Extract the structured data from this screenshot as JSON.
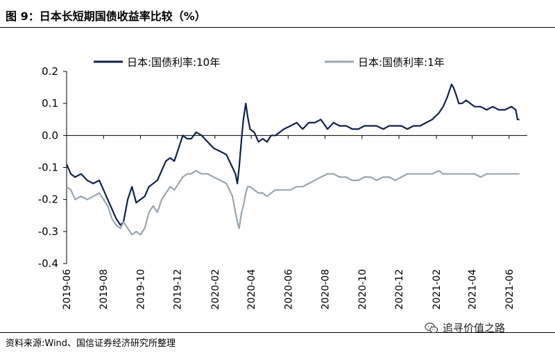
{
  "header": {
    "title": "图 9：日本长短期国债收益率比较（%）"
  },
  "footer": {
    "source": "资料来源:Wind、国信证券经济研究所整理"
  },
  "watermark": {
    "text": "追寻价值之路",
    "icon": "wechat-icon"
  },
  "chart_data": {
    "type": "line",
    "title": "",
    "xlabel": "",
    "ylabel": "",
    "ylim": [
      -0.4,
      0.2
    ],
    "yticks": [
      "0.2",
      "0.1",
      "0.0",
      "-0.1",
      "-0.2",
      "-0.3",
      "-0.4"
    ],
    "xlim": [
      "2019-06",
      "2021-07"
    ],
    "xticks": [
      "2019-06",
      "2019-08",
      "2019-10",
      "2019-12",
      "2020-02",
      "2020-04",
      "2020-06",
      "2020-08",
      "2020-10",
      "2020-12",
      "2021-02",
      "2021-04",
      "2021-06"
    ],
    "grid": false,
    "legend": "top",
    "series": [
      {
        "name": "日本:国债利率:10年",
        "color": "#0d2150",
        "x": [
          "2019-06-01",
          "2019-06-08",
          "2019-06-15",
          "2019-06-25",
          "2019-07-05",
          "2019-07-15",
          "2019-07-25",
          "2019-08-01",
          "2019-08-08",
          "2019-08-15",
          "2019-08-22",
          "2019-08-29",
          "2019-09-03",
          "2019-09-10",
          "2019-09-17",
          "2019-09-24",
          "2019-10-01",
          "2019-10-08",
          "2019-10-15",
          "2019-10-22",
          "2019-10-29",
          "2019-11-05",
          "2019-11-12",
          "2019-11-19",
          "2019-11-26",
          "2019-12-03",
          "2019-12-10",
          "2019-12-17",
          "2019-12-24",
          "2020-01-01",
          "2020-01-10",
          "2020-01-20",
          "2020-01-30",
          "2020-02-10",
          "2020-02-20",
          "2020-03-01",
          "2020-03-06",
          "2020-03-09",
          "2020-03-12",
          "2020-03-16",
          "2020-03-19",
          "2020-03-23",
          "2020-03-26",
          "2020-03-30",
          "2020-04-06",
          "2020-04-13",
          "2020-04-20",
          "2020-04-27",
          "2020-05-04",
          "2020-05-11",
          "2020-05-18",
          "2020-05-25",
          "2020-06-05",
          "2020-06-15",
          "2020-06-25",
          "2020-07-05",
          "2020-07-15",
          "2020-07-25",
          "2020-08-05",
          "2020-08-15",
          "2020-08-25",
          "2020-09-05",
          "2020-09-15",
          "2020-09-25",
          "2020-10-05",
          "2020-10-15",
          "2020-10-25",
          "2020-11-05",
          "2020-11-15",
          "2020-11-25",
          "2020-12-05",
          "2020-12-15",
          "2020-12-25",
          "2021-01-05",
          "2021-01-15",
          "2021-01-25",
          "2021-02-05",
          "2021-02-12",
          "2021-02-19",
          "2021-02-26",
          "2021-03-01",
          "2021-03-05",
          "2021-03-10",
          "2021-03-15",
          "2021-03-22",
          "2021-03-29",
          "2021-04-05",
          "2021-04-15",
          "2021-04-25",
          "2021-05-05",
          "2021-05-15",
          "2021-05-25",
          "2021-06-05",
          "2021-06-12",
          "2021-06-15",
          "2021-06-18"
        ],
        "values": [
          -0.09,
          -0.12,
          -0.13,
          -0.12,
          -0.14,
          -0.15,
          -0.14,
          -0.17,
          -0.2,
          -0.23,
          -0.26,
          -0.28,
          -0.27,
          -0.2,
          -0.16,
          -0.21,
          -0.2,
          -0.19,
          -0.16,
          -0.15,
          -0.14,
          -0.11,
          -0.08,
          -0.07,
          -0.08,
          -0.04,
          0.0,
          -0.01,
          -0.01,
          0.01,
          0.0,
          -0.02,
          -0.04,
          -0.05,
          -0.06,
          -0.1,
          -0.12,
          -0.15,
          -0.1,
          -0.01,
          0.05,
          0.1,
          0.06,
          0.02,
          0.01,
          -0.02,
          -0.01,
          -0.02,
          0.0,
          0.0,
          0.01,
          0.02,
          0.03,
          0.04,
          0.02,
          0.04,
          0.04,
          0.05,
          0.02,
          0.04,
          0.03,
          0.03,
          0.02,
          0.02,
          0.03,
          0.03,
          0.03,
          0.02,
          0.03,
          0.03,
          0.03,
          0.02,
          0.03,
          0.03,
          0.04,
          0.05,
          0.07,
          0.09,
          0.12,
          0.16,
          0.15,
          0.13,
          0.1,
          0.1,
          0.11,
          0.1,
          0.09,
          0.09,
          0.08,
          0.09,
          0.08,
          0.08,
          0.09,
          0.08,
          0.05,
          0.05
        ]
      },
      {
        "name": "日本:国债利率:1年",
        "color": "#9aa5b1",
        "x": [
          "2019-06-01",
          "2019-06-08",
          "2019-06-15",
          "2019-06-25",
          "2019-07-05",
          "2019-07-15",
          "2019-07-25",
          "2019-08-01",
          "2019-08-08",
          "2019-08-15",
          "2019-08-22",
          "2019-08-29",
          "2019-09-03",
          "2019-09-10",
          "2019-09-17",
          "2019-09-24",
          "2019-10-01",
          "2019-10-08",
          "2019-10-15",
          "2019-10-22",
          "2019-10-29",
          "2019-11-05",
          "2019-11-12",
          "2019-11-19",
          "2019-11-26",
          "2019-12-03",
          "2019-12-10",
          "2019-12-17",
          "2019-12-24",
          "2020-01-01",
          "2020-01-10",
          "2020-01-20",
          "2020-01-30",
          "2020-02-10",
          "2020-02-20",
          "2020-03-01",
          "2020-03-06",
          "2020-03-09",
          "2020-03-12",
          "2020-03-16",
          "2020-03-19",
          "2020-03-23",
          "2020-03-26",
          "2020-03-30",
          "2020-04-06",
          "2020-04-13",
          "2020-04-20",
          "2020-04-27",
          "2020-05-04",
          "2020-05-11",
          "2020-05-18",
          "2020-05-25",
          "2020-06-05",
          "2020-06-15",
          "2020-06-25",
          "2020-07-05",
          "2020-07-15",
          "2020-07-25",
          "2020-08-05",
          "2020-08-15",
          "2020-08-25",
          "2020-09-05",
          "2020-09-15",
          "2020-09-25",
          "2020-10-05",
          "2020-10-15",
          "2020-10-25",
          "2020-11-05",
          "2020-11-15",
          "2020-11-25",
          "2020-12-05",
          "2020-12-15",
          "2020-12-25",
          "2021-01-05",
          "2021-01-15",
          "2021-01-25",
          "2021-02-05",
          "2021-02-12",
          "2021-02-19",
          "2021-02-26",
          "2021-03-01",
          "2021-03-05",
          "2021-03-10",
          "2021-03-15",
          "2021-03-22",
          "2021-03-29",
          "2021-04-05",
          "2021-04-15",
          "2021-04-25",
          "2021-05-05",
          "2021-05-15",
          "2021-05-25",
          "2021-06-05",
          "2021-06-12",
          "2021-06-15",
          "2021-06-18"
        ],
        "values": [
          -0.16,
          -0.17,
          -0.2,
          -0.19,
          -0.2,
          -0.19,
          -0.18,
          -0.2,
          -0.22,
          -0.26,
          -0.28,
          -0.29,
          -0.27,
          -0.29,
          -0.31,
          -0.3,
          -0.31,
          -0.29,
          -0.24,
          -0.22,
          -0.24,
          -0.2,
          -0.18,
          -0.16,
          -0.17,
          -0.15,
          -0.13,
          -0.12,
          -0.12,
          -0.11,
          -0.12,
          -0.12,
          -0.13,
          -0.14,
          -0.15,
          -0.19,
          -0.24,
          -0.27,
          -0.29,
          -0.24,
          -0.22,
          -0.18,
          -0.16,
          -0.16,
          -0.17,
          -0.18,
          -0.18,
          -0.19,
          -0.18,
          -0.17,
          -0.17,
          -0.17,
          -0.17,
          -0.16,
          -0.16,
          -0.15,
          -0.14,
          -0.13,
          -0.12,
          -0.12,
          -0.13,
          -0.13,
          -0.14,
          -0.14,
          -0.13,
          -0.13,
          -0.14,
          -0.13,
          -0.13,
          -0.14,
          -0.13,
          -0.12,
          -0.12,
          -0.12,
          -0.12,
          -0.12,
          -0.11,
          -0.12,
          -0.12,
          -0.12,
          -0.12,
          -0.12,
          -0.12,
          -0.12,
          -0.12,
          -0.12,
          -0.12,
          -0.13,
          -0.12,
          -0.12,
          -0.12,
          -0.12,
          -0.12,
          -0.12,
          -0.12,
          -0.12
        ]
      }
    ]
  }
}
